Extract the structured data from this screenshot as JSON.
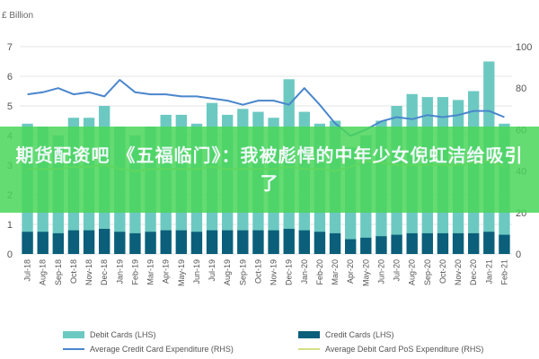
{
  "overlay_text": "期货配资吧 《五福临门》：我被彪悍的中年少女倪虹洁给吸引了",
  "colors": {
    "debit_bar": "#6cc9c2",
    "credit_bar": "#0b5f7a",
    "credit_line": "#4a86cc",
    "debit_line": "#d6e085",
    "grid": "#e6e6e6",
    "banner": "#4ad65a"
  },
  "chart_data": {
    "type": "bar",
    "left_axis_unit": "£ Billion",
    "ylim_left": [
      0,
      7
    ],
    "ylim_right": [
      0,
      100
    ],
    "yticks_left": [
      "0",
      "1",
      "2",
      "3",
      "4",
      "5",
      "6",
      "7"
    ],
    "yticks_right": [
      "0",
      "20",
      "40",
      "60",
      "80",
      "100"
    ],
    "categories": [
      "Jul-18",
      "Aug-18",
      "Sep-18",
      "Oct-18",
      "Nov-18",
      "Dec-18",
      "Jan-19",
      "Feb-19",
      "Mar-19",
      "Apr-19",
      "May-19",
      "Jun-19",
      "Jul-19",
      "Aug-19",
      "Sep-19",
      "Oct-19",
      "Nov-19",
      "Dec-19",
      "Jan-20",
      "Feb-20",
      "Mar-20",
      "Apr-20",
      "May-20",
      "Jun-20",
      "Jul-20",
      "Aug-20",
      "Sep-20",
      "Oct-20",
      "Nov-20",
      "Dec-20",
      "Jan-21",
      "Feb-21"
    ],
    "series": [
      {
        "name": "Debit Cards (LHS)",
        "axis": "left",
        "kind": "bar",
        "values": [
          4.4,
          4.3,
          4.0,
          4.6,
          4.6,
          5.0,
          4.3,
          4.0,
          4.3,
          4.7,
          4.7,
          4.4,
          5.1,
          4.7,
          4.9,
          4.8,
          4.6,
          5.9,
          4.8,
          4.4,
          4.5,
          3.6,
          4.0,
          4.5,
          5.0,
          5.4,
          5.3,
          5.3,
          5.2,
          5.5,
          6.5,
          4.4
        ]
      },
      {
        "name": "Credit Cards (LHS)",
        "axis": "left",
        "kind": "bar",
        "values": [
          0.75,
          0.75,
          0.7,
          0.8,
          0.8,
          0.85,
          0.75,
          0.7,
          0.75,
          0.8,
          0.8,
          0.75,
          0.8,
          0.8,
          0.8,
          0.8,
          0.8,
          0.85,
          0.8,
          0.75,
          0.7,
          0.5,
          0.55,
          0.6,
          0.65,
          0.7,
          0.7,
          0.7,
          0.7,
          0.7,
          0.75,
          0.65
        ]
      },
      {
        "name": "Average Credit Card Expenditure (RHS)",
        "axis": "right",
        "kind": "line",
        "values": [
          77,
          78,
          80,
          77,
          78,
          76,
          84,
          78,
          77,
          77,
          76,
          76,
          75,
          74,
          72,
          74,
          74,
          72,
          80,
          72,
          63,
          57,
          60,
          64,
          66,
          65,
          67,
          66,
          67,
          69,
          69,
          66
        ]
      },
      {
        "name": "Average Debit Card PoS Expenditure (RHS)",
        "axis": "right",
        "kind": "line",
        "values": [
          41,
          41,
          41,
          42,
          42,
          43,
          41,
          40,
          41,
          41,
          41,
          41,
          42,
          41,
          41,
          41,
          41,
          42,
          41,
          41,
          40,
          42,
          45,
          44,
          43,
          43,
          43,
          43,
          43,
          44,
          45,
          42
        ]
      }
    ]
  }
}
